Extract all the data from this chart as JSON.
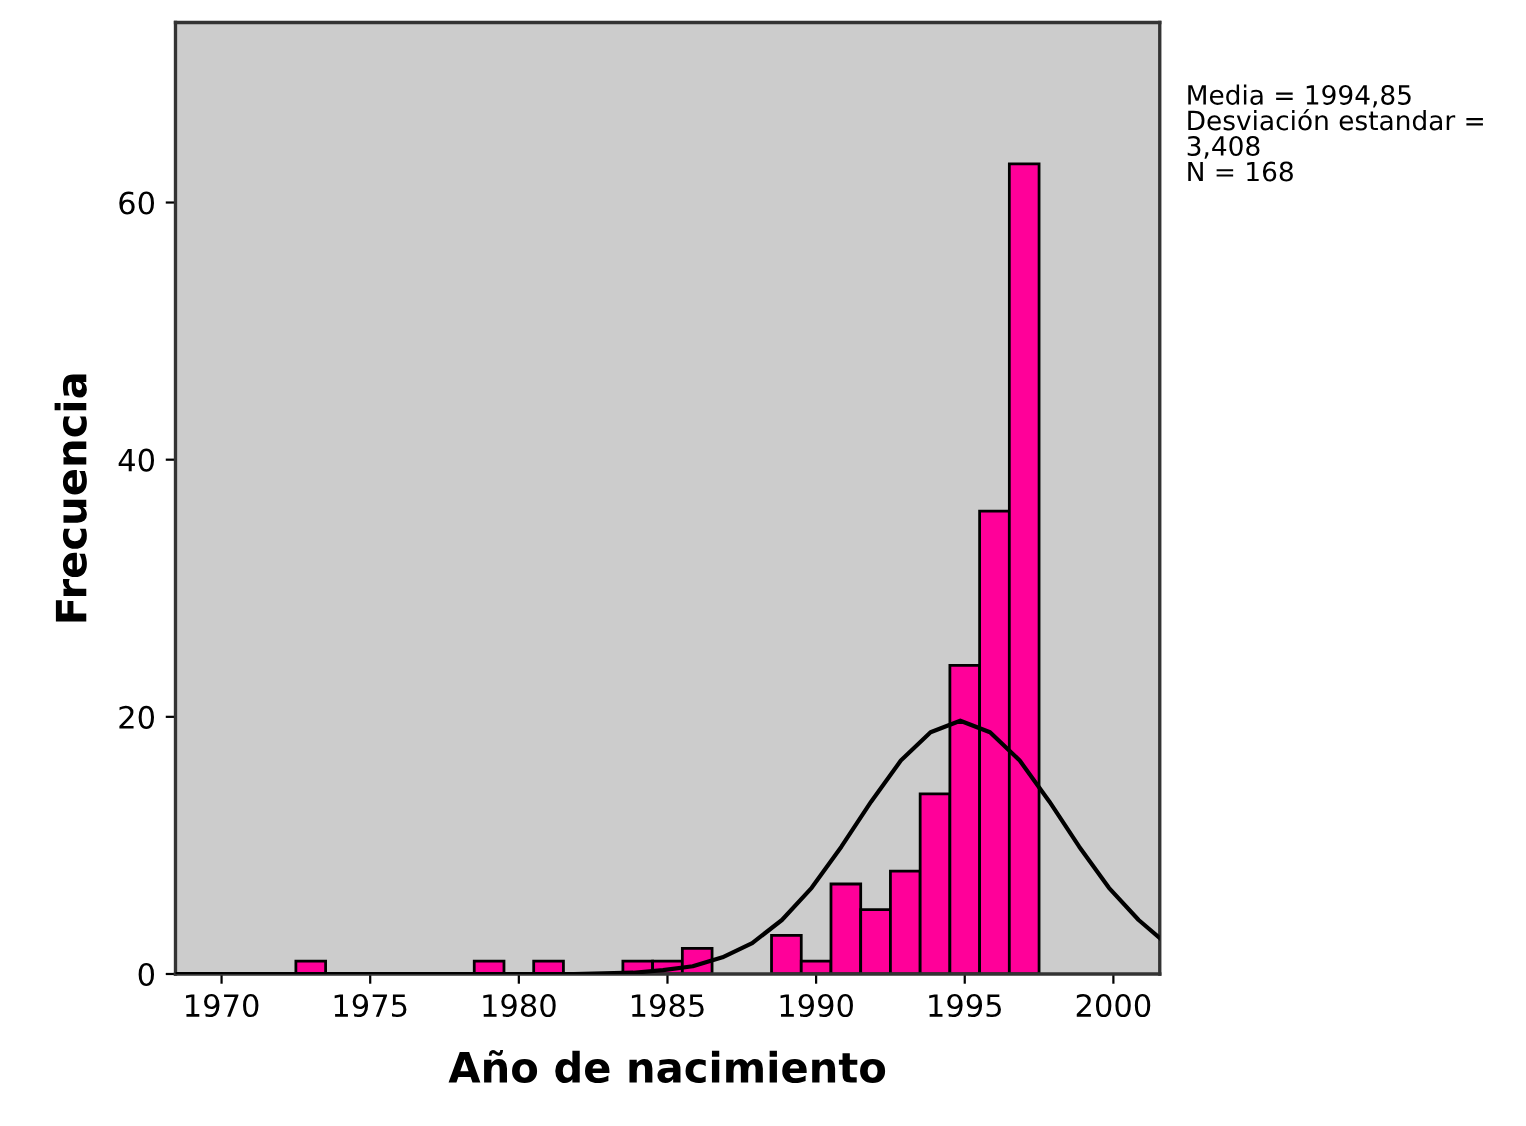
{
  "chart_data": {
    "type": "histogram",
    "xlabel": "Año de nacimiento",
    "ylabel": "Frecuencia",
    "annotations": [
      "Media = 1994,85",
      "Desviación estandar = 3,408",
      "N = 168"
    ],
    "xlim": [
      1968.45,
      2001.56
    ],
    "ylim": [
      0,
      74
    ],
    "xticks": [
      1970,
      1975,
      1980,
      1985,
      1990,
      1995,
      2000
    ],
    "yticks": [
      0,
      20,
      40,
      60
    ],
    "grid": false,
    "series": [
      {
        "color": "#ff0099",
        "bins": [
          1972.5,
          1973.5,
          1974.5,
          1975.5,
          1976.5,
          1977.5,
          1978.5,
          1979.5,
          1980.5,
          1981.5,
          1982.5,
          1983.5,
          1984.5,
          1985.5,
          1986.5,
          1987.5,
          1988.5,
          1989.5,
          1990.5,
          1991.5,
          1992.5,
          1993.5,
          1994.5,
          1995.5,
          1996.5,
          1997.5
        ],
        "values": [
          1,
          0,
          0,
          0,
          0,
          0,
          1,
          0,
          1,
          0,
          0,
          1,
          1,
          2,
          0,
          0,
          3,
          1,
          7,
          5,
          8,
          14,
          24,
          36,
          63
        ]
      },
      {
        "type": "line",
        "color": "#000000",
        "x": [
          1968.45,
          1978.85,
          1981.85,
          1983.85,
          1984.85,
          1985.85,
          1986.85,
          1987.85,
          1988.85,
          1989.85,
          1990.85,
          1991.85,
          1992.85,
          1993.85,
          1994.85,
          1995.85,
          1996.85,
          1997.85,
          1998.85,
          1999.85,
          2000.85,
          2001.56
        ],
        "values": [
          0,
          0,
          0,
          0.1,
          0.3,
          0.6,
          1.3,
          2.4,
          4.2,
          6.7,
          9.9,
          13.4,
          16.6,
          18.8,
          19.7,
          18.8,
          16.6,
          13.4,
          9.9,
          6.7,
          4.2,
          2.8
        ]
      }
    ]
  }
}
